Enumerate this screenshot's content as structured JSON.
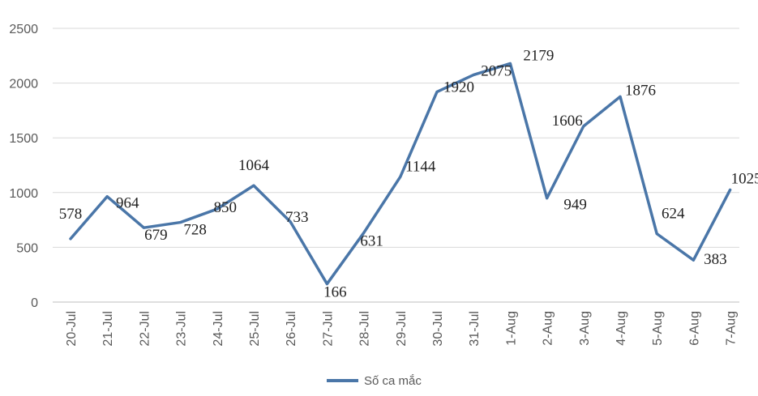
{
  "chart_data": {
    "type": "line",
    "categories": [
      "20-Jul",
      "21-Jul",
      "22-Jul",
      "23-Jul",
      "24-Jul",
      "25-Jul",
      "26-Jul",
      "27-Jul",
      "28-Jul",
      "29-Jul",
      "30-Jul",
      "31-Jul",
      "1-Aug",
      "2-Aug",
      "3-Aug",
      "4-Aug",
      "5-Aug",
      "6-Aug",
      "7-Aug"
    ],
    "series": [
      {
        "name": "Số ca mắc",
        "values": [
          578,
          964,
          679,
          728,
          850,
          1064,
          733,
          166,
          631,
          1144,
          1920,
          2075,
          2179,
          949,
          1606,
          1876,
          624,
          383,
          1025
        ],
        "color": "#4a76a8"
      }
    ],
    "ylim": [
      0,
      2500
    ],
    "yticks": [
      0,
      500,
      1000,
      1500,
      2000,
      2500
    ],
    "grid": true,
    "legend_position": "bottom",
    "title": "",
    "xlabel": "",
    "ylabel": ""
  }
}
